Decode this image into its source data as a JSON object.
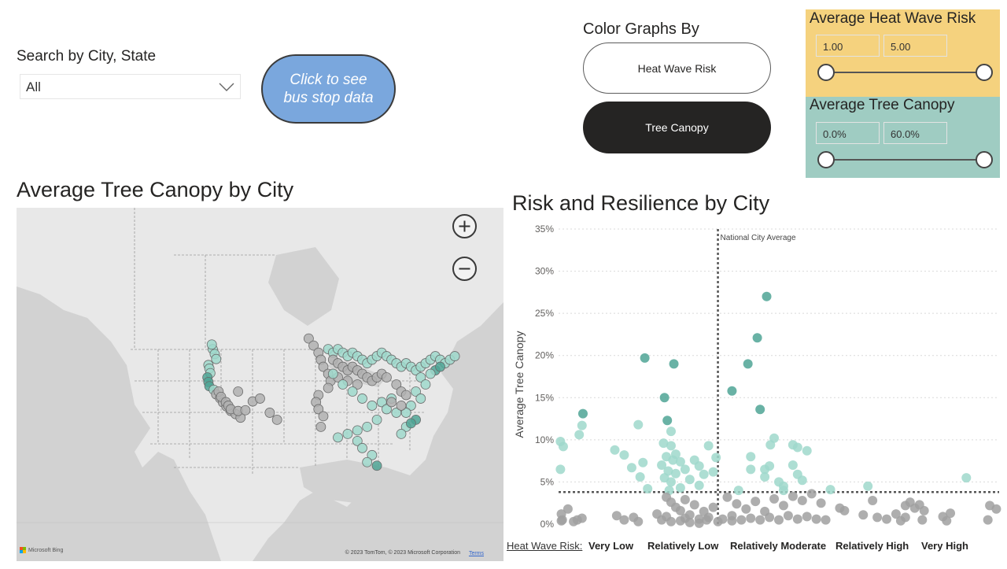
{
  "search": {
    "label": "Search by City, State",
    "value": "All"
  },
  "bus_button": {
    "label": "Click to see\nbus stop data"
  },
  "color_by": {
    "label": "Color Graphs By",
    "options": [
      "Heat Wave Risk",
      "Tree Canopy"
    ],
    "selected": "Tree Canopy"
  },
  "heat_slicer": {
    "title": "Average Heat Wave Risk",
    "min": "1.00",
    "max": "5.00",
    "bg": "#f5d27e"
  },
  "tree_slicer": {
    "title": "Average Tree Canopy",
    "min": "0.0%",
    "max": "60.0%",
    "bg": "#9fccc2"
  },
  "map": {
    "title": "Average Tree Canopy by City",
    "zoom_in_icon": "plus-icon",
    "zoom_out_icon": "minus-icon",
    "logo": "Microsoft Bing",
    "copyright": "© 2023 TomTom, © 2023 Microsoft Corporation",
    "terms": "Terms"
  },
  "chart_data": {
    "type": "scatter",
    "title": "Risk and Resilience by City",
    "ylabel": "Average Tree Canopy",
    "xlabel": "Heat Wave Risk:",
    "x_categories": [
      "Very Low",
      "Relatively Low",
      "Relatively Moderate",
      "Relatively High",
      "Very High"
    ],
    "x_range": [
      0.7,
      5.4
    ],
    "ylim": [
      0,
      35
    ],
    "yticks": [
      "0%",
      "5%",
      "10%",
      "15%",
      "20%",
      "25%",
      "30%",
      "35%"
    ],
    "grid": true,
    "reference_lines": [
      {
        "axis": "x",
        "value": 2.4,
        "label": "National City Average"
      },
      {
        "axis": "y",
        "value": 3.8,
        "label": ""
      }
    ],
    "colors": {
      "high": "#4fa595",
      "mid": "#9fd8cb",
      "low": "#a0a0a0"
    },
    "points": [
      [
        0.72,
        9.8
      ],
      [
        0.75,
        9.2
      ],
      [
        0.72,
        6.5
      ],
      [
        0.92,
        10.6
      ],
      [
        0.95,
        11.7
      ],
      [
        0.96,
        13.1
      ],
      [
        0.8,
        1.8
      ],
      [
        0.73,
        1.2
      ],
      [
        0.74,
        0.5
      ],
      [
        0.73,
        0.4
      ],
      [
        0.86,
        0.3
      ],
      [
        0.9,
        0.5
      ],
      [
        0.95,
        0.7
      ],
      [
        1.3,
        8.8
      ],
      [
        1.4,
        8.2
      ],
      [
        1.55,
        11.8
      ],
      [
        1.62,
        19.7
      ],
      [
        1.6,
        7.3
      ],
      [
        1.57,
        5.6
      ],
      [
        1.48,
        6.7
      ],
      [
        1.65,
        4.2
      ],
      [
        1.32,
        1.0
      ],
      [
        1.4,
        0.5
      ],
      [
        1.5,
        0.8
      ],
      [
        1.55,
        0.3
      ],
      [
        1.83,
        15.0
      ],
      [
        1.86,
        12.3
      ],
      [
        1.93,
        19.0
      ],
      [
        1.9,
        11.0
      ],
      [
        1.82,
        9.6
      ],
      [
        1.9,
        9.3
      ],
      [
        1.95,
        8.3
      ],
      [
        1.85,
        8.0
      ],
      [
        1.92,
        7.6
      ],
      [
        1.8,
        7.0
      ],
      [
        1.87,
        6.3
      ],
      [
        1.95,
        6.0
      ],
      [
        1.83,
        5.5
      ],
      [
        1.9,
        5.0
      ],
      [
        2.0,
        7.4
      ],
      [
        2.05,
        6.5
      ],
      [
        2.1,
        5.3
      ],
      [
        2.15,
        7.6
      ],
      [
        2.2,
        6.9
      ],
      [
        2.25,
        5.9
      ],
      [
        2.3,
        9.3
      ],
      [
        2.35,
        6.2
      ],
      [
        2.38,
        7.9
      ],
      [
        2.0,
        4.3
      ],
      [
        2.2,
        4.6
      ],
      [
        1.88,
        4.0
      ],
      [
        1.85,
        3.2
      ],
      [
        1.9,
        2.6
      ],
      [
        1.95,
        2.0
      ],
      [
        2.0,
        1.6
      ],
      [
        2.05,
        2.9
      ],
      [
        2.1,
        1.1
      ],
      [
        2.15,
        2.3
      ],
      [
        2.2,
        0.6
      ],
      [
        2.25,
        1.5
      ],
      [
        2.3,
        0.8
      ],
      [
        2.35,
        2.0
      ],
      [
        1.8,
        0.5
      ],
      [
        1.9,
        0.3
      ],
      [
        2.0,
        0.4
      ],
      [
        2.1,
        0.2
      ],
      [
        2.2,
        0.1
      ],
      [
        2.28,
        0.5
      ],
      [
        2.4,
        0.3
      ],
      [
        2.45,
        0.6
      ],
      [
        1.75,
        1.2
      ],
      [
        1.85,
        0.9
      ],
      [
        2.05,
        0.7
      ],
      [
        2.55,
        15.8
      ],
      [
        2.72,
        19.0
      ],
      [
        2.82,
        22.1
      ],
      [
        2.92,
        27.0
      ],
      [
        2.85,
        13.6
      ],
      [
        2.96,
        9.4
      ],
      [
        3.0,
        10.2
      ],
      [
        2.75,
        8.0
      ],
      [
        2.9,
        6.5
      ],
      [
        2.95,
        6.9
      ],
      [
        2.75,
        6.5
      ],
      [
        2.9,
        5.6
      ],
      [
        3.05,
        5.0
      ],
      [
        3.1,
        4.0
      ],
      [
        3.2,
        9.4
      ],
      [
        3.25,
        9.1
      ],
      [
        3.35,
        8.7
      ],
      [
        3.2,
        7.0
      ],
      [
        3.25,
        5.9
      ],
      [
        3.3,
        5.2
      ],
      [
        3.1,
        4.5
      ],
      [
        2.62,
        4.0
      ],
      [
        2.5,
        3.2
      ],
      [
        2.6,
        2.4
      ],
      [
        2.7,
        1.8
      ],
      [
        2.8,
        2.7
      ],
      [
        2.9,
        1.5
      ],
      [
        3.0,
        3.0
      ],
      [
        3.1,
        2.2
      ],
      [
        3.2,
        3.3
      ],
      [
        3.3,
        2.8
      ],
      [
        3.4,
        3.6
      ],
      [
        3.5,
        2.5
      ],
      [
        3.45,
        0.6
      ],
      [
        2.65,
        0.5
      ],
      [
        2.75,
        0.7
      ],
      [
        2.85,
        0.5
      ],
      [
        2.95,
        0.8
      ],
      [
        3.05,
        0.5
      ],
      [
        3.15,
        1.0
      ],
      [
        3.25,
        0.6
      ],
      [
        3.35,
        0.9
      ],
      [
        3.55,
        0.5
      ],
      [
        3.6,
        4.1
      ],
      [
        3.75,
        1.6
      ],
      [
        3.7,
        1.9
      ],
      [
        2.55,
        0.4
      ],
      [
        2.55,
        1.0
      ],
      [
        4.0,
        4.5
      ],
      [
        4.05,
        2.8
      ],
      [
        3.95,
        1.1
      ],
      [
        4.1,
        0.8
      ],
      [
        4.2,
        0.6
      ],
      [
        4.3,
        1.2
      ],
      [
        4.35,
        0.4
      ],
      [
        4.4,
        2.2
      ],
      [
        4.45,
        2.6
      ],
      [
        4.5,
        1.9
      ],
      [
        4.55,
        2.3
      ],
      [
        4.6,
        1.6
      ],
      [
        4.58,
        0.5
      ],
      [
        4.4,
        0.8
      ],
      [
        4.8,
        0.9
      ],
      [
        4.84,
        0.4
      ],
      [
        4.88,
        1.3
      ],
      [
        5.05,
        5.5
      ],
      [
        5.3,
        2.2
      ],
      [
        5.37,
        1.8
      ],
      [
        5.28,
        0.5
      ]
    ]
  },
  "map_points": [
    [
      0.394,
      0.445,
      1
    ],
    [
      0.396,
      0.455,
      1
    ],
    [
      0.398,
      0.468,
      1
    ],
    [
      0.392,
      0.48,
      2
    ],
    [
      0.394,
      0.493,
      2
    ],
    [
      0.396,
      0.505,
      2
    ],
    [
      0.405,
      0.515,
      1
    ],
    [
      0.41,
      0.528,
      0
    ],
    [
      0.418,
      0.539,
      0
    ],
    [
      0.424,
      0.551,
      0
    ],
    [
      0.431,
      0.562,
      0
    ],
    [
      0.44,
      0.575,
      0
    ],
    [
      0.45,
      0.584,
      0
    ],
    [
      0.46,
      0.594,
      0
    ],
    [
      0.403,
      0.4,
      1
    ],
    [
      0.407,
      0.414,
      1
    ],
    [
      0.41,
      0.428,
      1
    ],
    [
      0.401,
      0.387,
      1
    ],
    [
      0.415,
      0.52,
      0
    ],
    [
      0.42,
      0.535,
      0
    ],
    [
      0.43,
      0.55,
      0
    ],
    [
      0.435,
      0.56,
      0
    ],
    [
      0.44,
      0.57,
      0
    ],
    [
      0.455,
      0.575,
      0
    ],
    [
      0.47,
      0.573,
      0
    ],
    [
      0.485,
      0.548,
      0
    ],
    [
      0.5,
      0.54,
      0
    ],
    [
      0.52,
      0.58,
      0
    ],
    [
      0.535,
      0.6,
      0
    ],
    [
      0.455,
      0.52,
      0
    ],
    [
      0.6,
      0.37,
      0
    ],
    [
      0.61,
      0.39,
      0
    ],
    [
      0.62,
      0.41,
      0
    ],
    [
      0.625,
      0.43,
      0
    ],
    [
      0.63,
      0.45,
      0
    ],
    [
      0.64,
      0.47,
      0
    ],
    [
      0.645,
      0.49,
      0
    ],
    [
      0.64,
      0.51,
      0
    ],
    [
      0.62,
      0.53,
      0
    ],
    [
      0.615,
      0.55,
      0
    ],
    [
      0.62,
      0.57,
      0
    ],
    [
      0.63,
      0.59,
      0
    ],
    [
      0.625,
      0.62,
      0
    ],
    [
      0.64,
      0.4,
      1
    ],
    [
      0.65,
      0.41,
      1
    ],
    [
      0.66,
      0.4,
      1
    ],
    [
      0.67,
      0.41,
      1
    ],
    [
      0.68,
      0.42,
      1
    ],
    [
      0.69,
      0.41,
      1
    ],
    [
      0.7,
      0.42,
      1
    ],
    [
      0.71,
      0.43,
      1
    ],
    [
      0.72,
      0.44,
      1
    ],
    [
      0.73,
      0.43,
      1
    ],
    [
      0.74,
      0.42,
      1
    ],
    [
      0.75,
      0.41,
      1
    ],
    [
      0.76,
      0.42,
      1
    ],
    [
      0.77,
      0.43,
      1
    ],
    [
      0.65,
      0.43,
      0
    ],
    [
      0.66,
      0.44,
      0
    ],
    [
      0.67,
      0.45,
      0
    ],
    [
      0.68,
      0.46,
      0
    ],
    [
      0.69,
      0.45,
      0
    ],
    [
      0.7,
      0.46,
      0
    ],
    [
      0.71,
      0.47,
      0
    ],
    [
      0.72,
      0.48,
      0
    ],
    [
      0.73,
      0.49,
      0
    ],
    [
      0.74,
      0.48,
      0
    ],
    [
      0.75,
      0.47,
      0
    ],
    [
      0.76,
      0.48,
      0
    ],
    [
      0.66,
      0.48,
      0
    ],
    [
      0.68,
      0.49,
      0
    ],
    [
      0.7,
      0.5,
      0
    ],
    [
      0.65,
      0.47,
      1
    ],
    [
      0.67,
      0.5,
      1
    ],
    [
      0.69,
      0.52,
      1
    ],
    [
      0.71,
      0.54,
      1
    ],
    [
      0.73,
      0.56,
      1
    ],
    [
      0.75,
      0.55,
      1
    ],
    [
      0.77,
      0.54,
      1
    ],
    [
      0.76,
      0.57,
      1
    ],
    [
      0.78,
      0.58,
      1
    ],
    [
      0.74,
      0.6,
      1
    ],
    [
      0.72,
      0.62,
      1
    ],
    [
      0.7,
      0.63,
      1
    ],
    [
      0.68,
      0.64,
      1
    ],
    [
      0.66,
      0.65,
      1
    ],
    [
      0.7,
      0.66,
      1
    ],
    [
      0.71,
      0.68,
      1
    ],
    [
      0.73,
      0.7,
      1
    ],
    [
      0.72,
      0.72,
      1
    ],
    [
      0.74,
      0.73,
      2
    ],
    [
      0.78,
      0.44,
      1
    ],
    [
      0.79,
      0.45,
      1
    ],
    [
      0.8,
      0.44,
      1
    ],
    [
      0.81,
      0.45,
      1
    ],
    [
      0.82,
      0.46,
      1
    ],
    [
      0.83,
      0.45,
      1
    ],
    [
      0.84,
      0.44,
      1
    ],
    [
      0.85,
      0.43,
      1
    ],
    [
      0.86,
      0.42,
      1
    ],
    [
      0.87,
      0.43,
      1
    ],
    [
      0.88,
      0.44,
      1
    ],
    [
      0.89,
      0.43,
      1
    ],
    [
      0.9,
      0.42,
      1
    ],
    [
      0.86,
      0.46,
      2
    ],
    [
      0.87,
      0.45,
      2
    ],
    [
      0.85,
      0.47,
      1
    ],
    [
      0.83,
      0.48,
      1
    ],
    [
      0.84,
      0.5,
      1
    ],
    [
      0.82,
      0.52,
      1
    ],
    [
      0.83,
      0.54,
      1
    ],
    [
      0.81,
      0.56,
      1
    ],
    [
      0.8,
      0.58,
      1
    ],
    [
      0.82,
      0.6,
      2
    ],
    [
      0.8,
      0.62,
      1
    ],
    [
      0.81,
      0.61,
      2
    ],
    [
      0.79,
      0.64,
      1
    ],
    [
      0.78,
      0.5,
      0
    ],
    [
      0.79,
      0.52,
      0
    ],
    [
      0.8,
      0.53,
      0
    ],
    [
      0.77,
      0.55,
      0
    ],
    [
      0.79,
      0.56,
      0
    ]
  ]
}
